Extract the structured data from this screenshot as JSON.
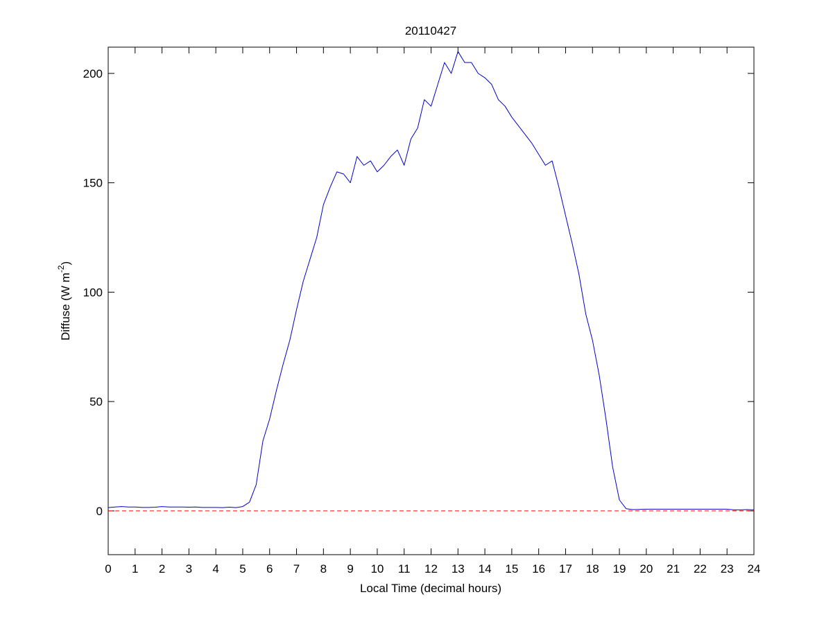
{
  "chart_data": {
    "type": "line",
    "title": "20110427",
    "xlabel": "Local Time (decimal hours)",
    "ylabel": [
      "Diffuse (W m",
      "-2",
      ")"
    ],
    "x": [
      0,
      0.25,
      0.5,
      0.75,
      1,
      1.25,
      1.5,
      1.75,
      2,
      2.25,
      2.5,
      2.75,
      3,
      3.25,
      3.5,
      3.75,
      4,
      4.25,
      4.5,
      4.75,
      5,
      5.25,
      5.5,
      5.75,
      6,
      6.25,
      6.5,
      6.75,
      7,
      7.25,
      7.5,
      7.75,
      8,
      8.25,
      8.5,
      8.75,
      9,
      9.25,
      9.5,
      9.75,
      10,
      10.25,
      10.5,
      10.75,
      11,
      11.25,
      11.5,
      11.75,
      12,
      12.25,
      12.5,
      12.75,
      13,
      13.25,
      13.5,
      13.75,
      14,
      14.25,
      14.5,
      14.75,
      15,
      15.25,
      15.5,
      15.75,
      16,
      16.25,
      16.5,
      16.75,
      17,
      17.25,
      17.5,
      17.75,
      18,
      18.25,
      18.5,
      18.75,
      19,
      19.25,
      19.5,
      19.75,
      20,
      20.25,
      20.5,
      20.75,
      21,
      21.25,
      21.5,
      21.75,
      22,
      22.25,
      22.5,
      22.75,
      23,
      23.25,
      23.5,
      23.75,
      24
    ],
    "series": [
      {
        "color": "#0000c8",
        "values": [
          1.5,
          1.8,
          2.0,
          1.8,
          1.8,
          1.6,
          1.6,
          1.7,
          2.0,
          1.8,
          1.8,
          1.8,
          1.7,
          1.8,
          1.6,
          1.6,
          1.6,
          1.5,
          1.7,
          1.5,
          2.0,
          4,
          12,
          32,
          42,
          55,
          67,
          78,
          92,
          105,
          115,
          125,
          140,
          148,
          155,
          154,
          150,
          162,
          158,
          160,
          155,
          158,
          162,
          165,
          158,
          170,
          175,
          188,
          185,
          195,
          205,
          200,
          210,
          205,
          205,
          200,
          198,
          195,
          188,
          185,
          180,
          176,
          172,
          168,
          163,
          158,
          160,
          148,
          135,
          122,
          108,
          90,
          78,
          62,
          42,
          20,
          5,
          1.0,
          0.6,
          0.7,
          0.8,
          0.8,
          0.8,
          0.8,
          0.8,
          0.8,
          0.8,
          0.8,
          0.8,
          0.8,
          0.8,
          0.8,
          0.8,
          0.5,
          0.5,
          0.6,
          0.5
        ]
      }
    ],
    "hlines": [
      {
        "value": 0,
        "color": "#ff0000",
        "dashed": true
      }
    ],
    "xlim": [
      0,
      24
    ],
    "xticks": [
      0,
      1,
      2,
      3,
      4,
      5,
      6,
      7,
      8,
      9,
      10,
      11,
      12,
      13,
      14,
      15,
      16,
      17,
      18,
      19,
      20,
      21,
      22,
      23,
      24
    ],
    "ylim": [
      -20,
      212
    ],
    "yticks": [
      0,
      50,
      100,
      150,
      200
    ],
    "grid": false
  }
}
